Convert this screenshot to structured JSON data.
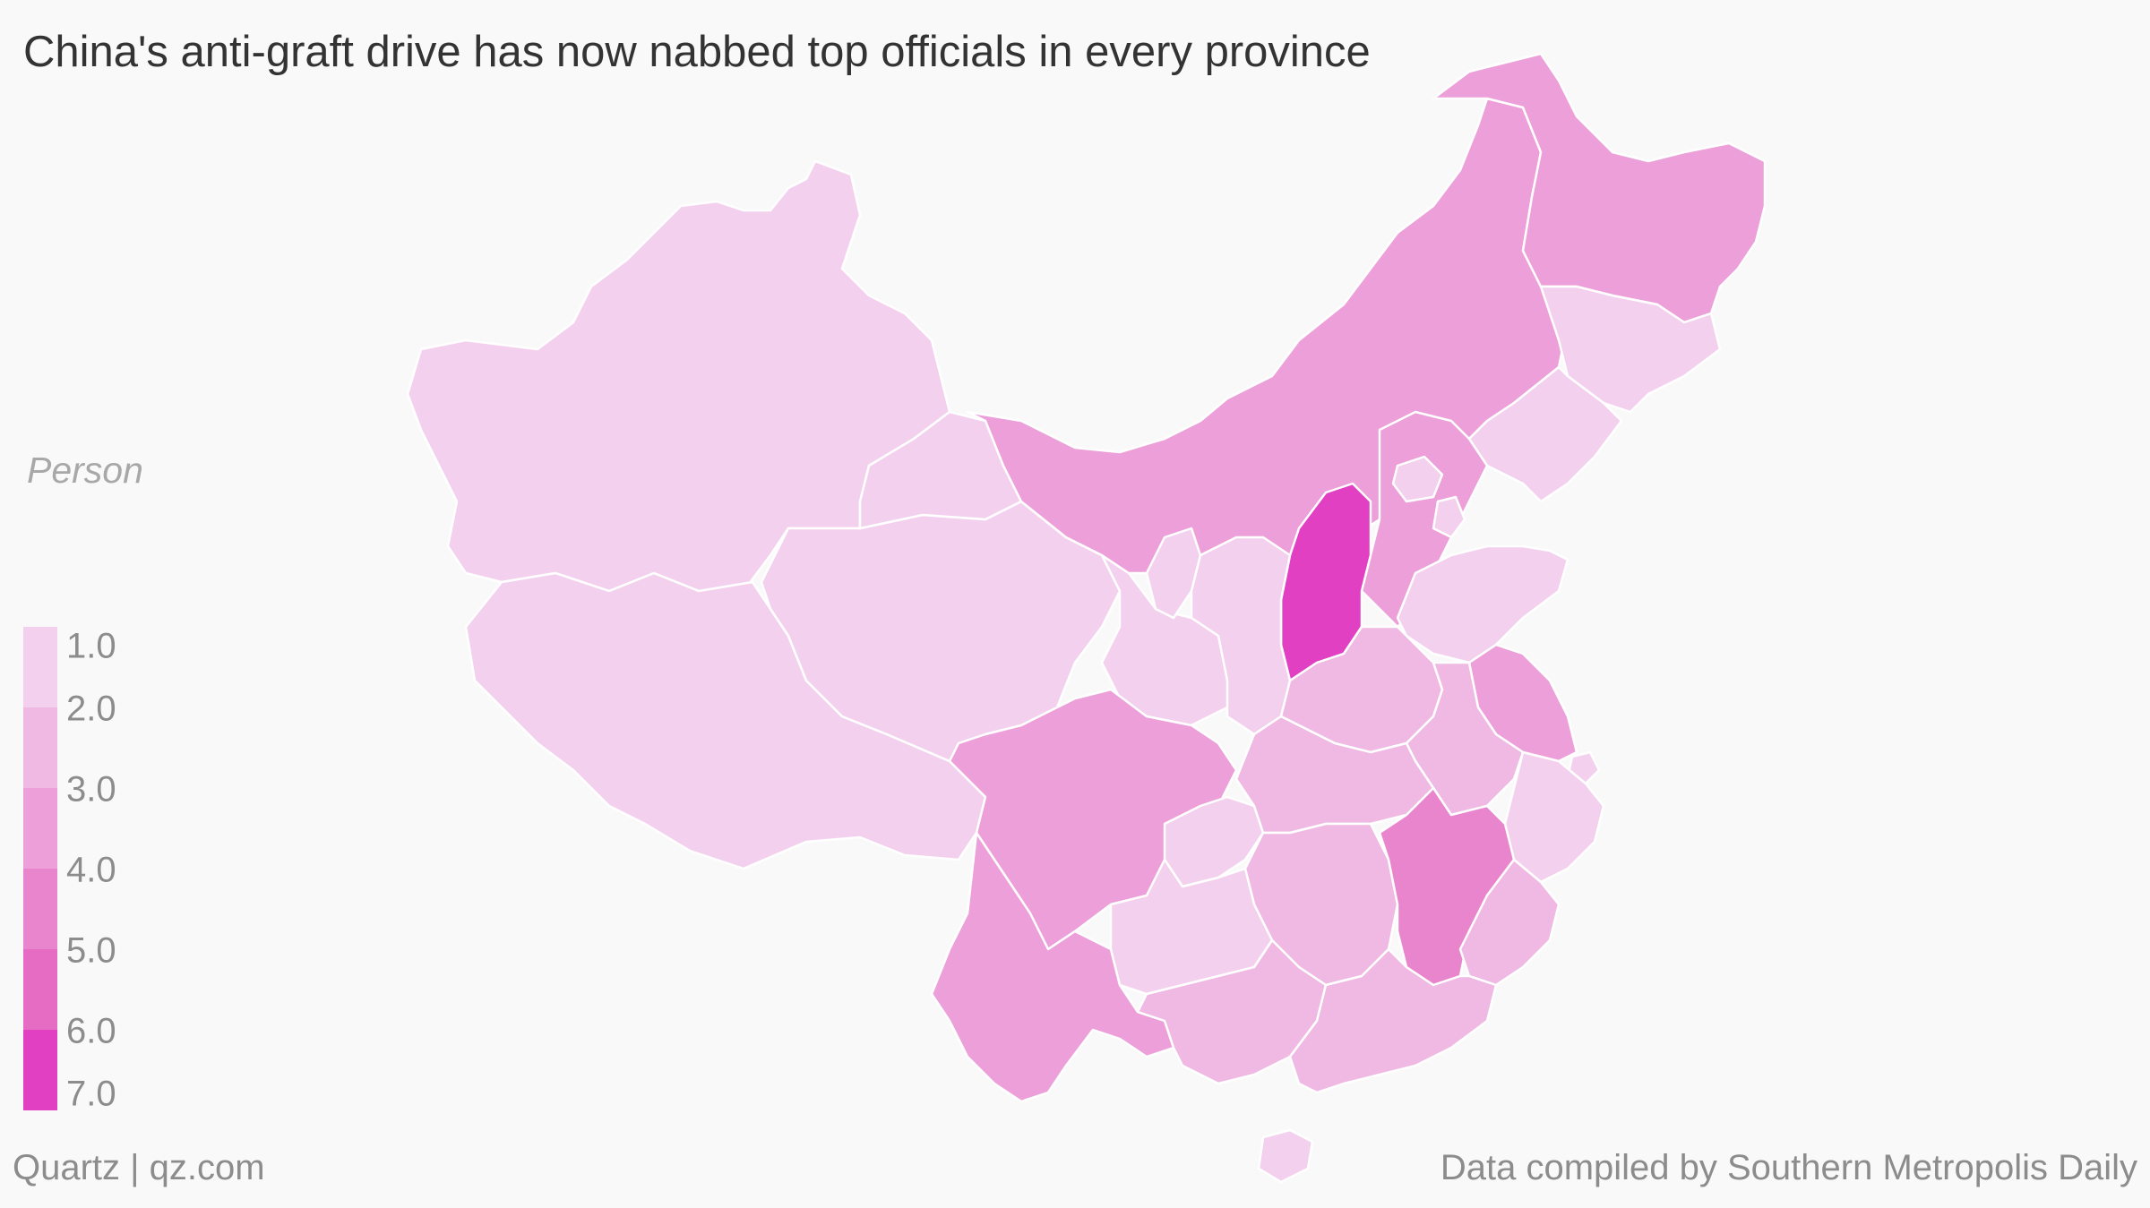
{
  "header": {
    "title": "China's anti-graft drive has now nabbed top officials in every province"
  },
  "legend": {
    "unit": "Person",
    "colors": [
      "#f3d1ee",
      "#efb9e3",
      "#ec9fd8",
      "#e985cd",
      "#e66bc2",
      "#e140c2"
    ],
    "ticks": [
      "1.0",
      "2.0",
      "3.0",
      "4.0",
      "5.0",
      "6.0",
      "7.0"
    ],
    "tick_values": [
      1,
      2,
      3,
      4,
      5,
      6,
      7
    ]
  },
  "footer": {
    "source_left": "Quartz | qz.com",
    "source_right": "Data compiled by Southern Metropolis Daily"
  },
  "map": {
    "background": "#f9f9f9",
    "border_color": "#ffffff",
    "regions": [
      {
        "id": "xinjiang",
        "value": 1
      },
      {
        "id": "tibet",
        "value": 1
      },
      {
        "id": "qinghai",
        "value": 1
      },
      {
        "id": "gansu",
        "value": 1
      },
      {
        "id": "inner-mongolia",
        "value": 3
      },
      {
        "id": "heilongjiang",
        "value": 3
      },
      {
        "id": "jilin",
        "value": 1
      },
      {
        "id": "liaoning",
        "value": 1
      },
      {
        "id": "hebei",
        "value": 3
      },
      {
        "id": "beijing",
        "value": 1
      },
      {
        "id": "tianjin",
        "value": 1
      },
      {
        "id": "shanxi",
        "value": 7
      },
      {
        "id": "shandong",
        "value": 1
      },
      {
        "id": "ningxia",
        "value": 1
      },
      {
        "id": "shaanxi",
        "value": 1
      },
      {
        "id": "henan",
        "value": 2
      },
      {
        "id": "jiangsu",
        "value": 3
      },
      {
        "id": "anhui",
        "value": 2
      },
      {
        "id": "shanghai",
        "value": 1
      },
      {
        "id": "zhejiang",
        "value": 1
      },
      {
        "id": "sichuan",
        "value": 3
      },
      {
        "id": "chongqing",
        "value": 1
      },
      {
        "id": "hubei",
        "value": 2
      },
      {
        "id": "hunan",
        "value": 2
      },
      {
        "id": "jiangxi",
        "value": 4
      },
      {
        "id": "fujian",
        "value": 2
      },
      {
        "id": "yunnan",
        "value": 3
      },
      {
        "id": "guizhou",
        "value": 1
      },
      {
        "id": "guangxi",
        "value": 2
      },
      {
        "id": "guangdong",
        "value": 2
      },
      {
        "id": "hainan",
        "value": 1
      }
    ]
  }
}
